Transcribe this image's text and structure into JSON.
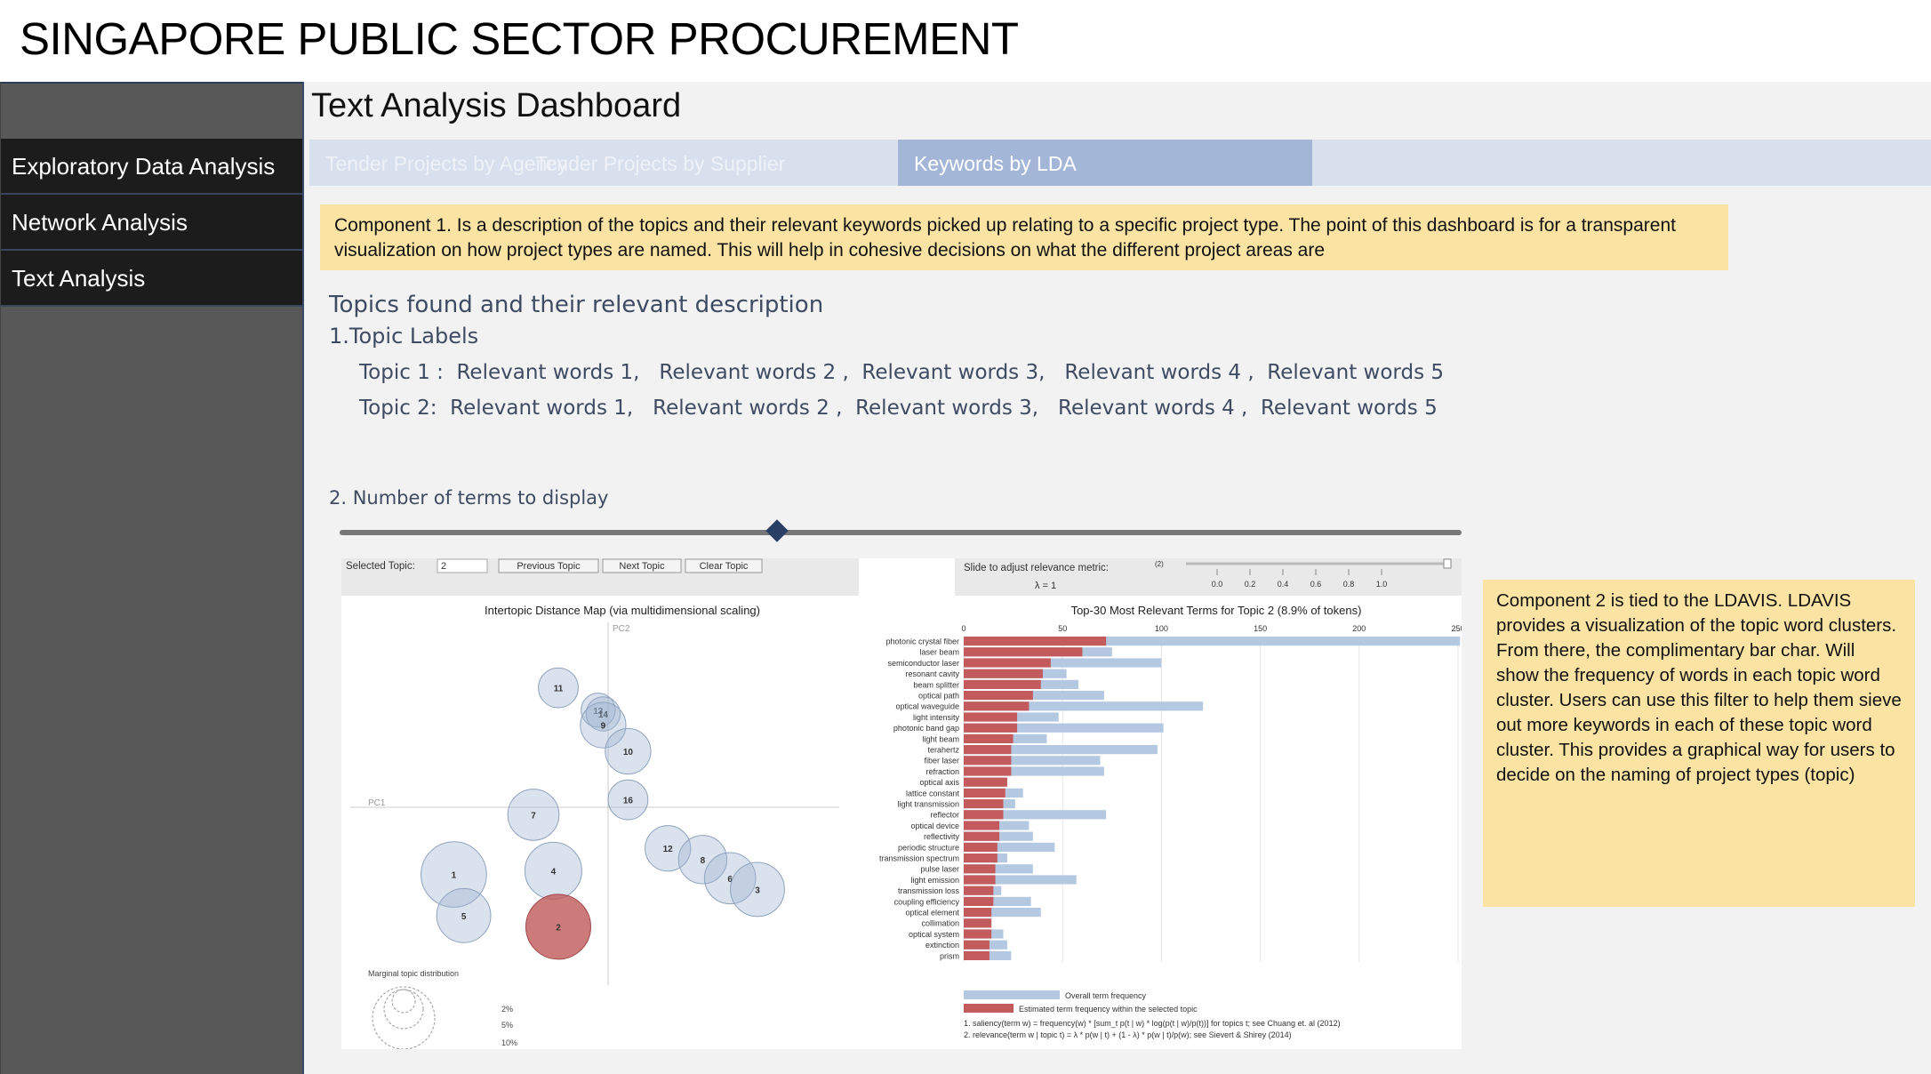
{
  "app": {
    "title": "SINGAPORE PUBLIC SECTOR PROCUREMENT"
  },
  "sidebar": {
    "items": [
      {
        "label": "Exploratory Data Analysis"
      },
      {
        "label": "Network Analysis"
      },
      {
        "label": "Text Analysis"
      }
    ]
  },
  "main": {
    "title": "Text Analysis Dashboard",
    "tabs": [
      {
        "label": "Tender Projects by Agency"
      },
      {
        "label": "Tender Projects by Supplier"
      },
      {
        "label": "Keywords by LDA"
      }
    ],
    "component1": "Component 1. Is a description of the topics and their relevant keywords picked up relating to a specific project type. The point of this dashboard is for a transparent visualization on how project types are named. This will help in cohesive decisions on what the different project areas are",
    "topics_heading": "Topics found and their relevant description",
    "topic_labels_heading": "1.Topic Labels",
    "topic_lines": [
      "Topic 1 :  Relevant words 1,   Relevant words 2 ,  Relevant words 3,   Relevant words 4 ,  Relevant words 5",
      "Topic 2:  Relevant words 1,   Relevant words 2 ,  Relevant words 3,   Relevant words 4 ,  Relevant words 5"
    ],
    "terms_label": "2. Number of terms to display",
    "terms_slider_value": 0.39,
    "component2": "Component 2 is tied to the LDAVIS. LDAVIS provides a visualization of the topic word clusters. From there, the complimentary bar char. Will show the frequency of words in each topic word cluster. Users can use this filter to help them sieve out more keywords in each of these topic word cluster.  This provides a graphical way for users to decide on the naming of project types (topic)"
  },
  "ldavis": {
    "controls": {
      "selected_topic_label": "Selected Topic:",
      "selected_topic_value": "2",
      "prev_label": "Previous Topic",
      "next_label": "Next Topic",
      "clear_label": "Clear Topic",
      "relevance_label": "Slide to adjust relevance metric:",
      "relevance_sup": "(2)",
      "lambda_label": "λ = 1",
      "lambda_ticks": [
        "0.0",
        "0.2",
        "0.4",
        "0.6",
        "0.8",
        "1.0"
      ]
    },
    "map_title": "Intertopic Distance Map (via multidimensional scaling)",
    "pc1": "PC1",
    "pc2": "PC2",
    "marginal_label": "Marginal topic distribution",
    "marginal_legend": [
      "2%",
      "5%",
      "10%"
    ],
    "bar_title": "Top-30 Most Relevant Terms for Topic 2 (8.9% of tokens)",
    "legend_overall": "Overall term frequency",
    "legend_estimated": "Estimated term frequency within the selected topic",
    "footnote1": "1. saliency(term w) = frequency(w) * [sum_t p(t | w) * log(p(t | w)/p(t))] for topics t; see Chuang et. al (2012)",
    "footnote2": "2. relevance(term w | topic t) = λ * p(w | t) + (1 - λ) * p(w | t)/p(w); see Sievert & Shirey (2014)"
  },
  "chart_data": [
    {
      "type": "scatter",
      "title": "Intertopic Distance Map (via multidimensional scaling)",
      "xlabel": "PC1",
      "ylabel": "PC2",
      "topics": [
        {
          "id": "11",
          "pc1": -0.1,
          "pc2": 0.16,
          "size": 4.5,
          "selected": false
        },
        {
          "id": "13",
          "pc1": -0.02,
          "pc2": 0.13,
          "size": 3.5,
          "selected": false
        },
        {
          "id": "14",
          "pc1": -0.01,
          "pc2": 0.125,
          "size": 3.5,
          "selected": false
        },
        {
          "id": "9",
          "pc1": -0.01,
          "pc2": 0.11,
          "size": 5.5,
          "selected": false
        },
        {
          "id": "10",
          "pc1": 0.04,
          "pc2": 0.075,
          "size": 5.5,
          "selected": false
        },
        {
          "id": "16",
          "pc1": 0.04,
          "pc2": 0.01,
          "size": 4.5,
          "selected": false
        },
        {
          "id": "7",
          "pc1": -0.15,
          "pc2": -0.01,
          "size": 6.5,
          "selected": false
        },
        {
          "id": "12",
          "pc1": 0.12,
          "pc2": -0.055,
          "size": 5.5,
          "selected": false
        },
        {
          "id": "8",
          "pc1": 0.19,
          "pc2": -0.07,
          "size": 6,
          "selected": false
        },
        {
          "id": "6",
          "pc1": 0.245,
          "pc2": -0.095,
          "size": 6.5,
          "selected": false
        },
        {
          "id": "3",
          "pc1": 0.3,
          "pc2": -0.11,
          "size": 7,
          "selected": false
        },
        {
          "id": "1",
          "pc1": -0.31,
          "pc2": -0.09,
          "size": 9,
          "selected": false
        },
        {
          "id": "4",
          "pc1": -0.11,
          "pc2": -0.085,
          "size": 7.5,
          "selected": false
        },
        {
          "id": "5",
          "pc1": -0.29,
          "pc2": -0.145,
          "size": 7,
          "selected": false
        },
        {
          "id": "2",
          "pc1": -0.1,
          "pc2": -0.16,
          "size": 8.9,
          "selected": true
        }
      ]
    },
    {
      "type": "bar",
      "title": "Top-30 Most Relevant Terms for Topic 2 (8.9% of tokens)",
      "xlim": [
        0,
        250
      ],
      "xticks": [
        0,
        50,
        100,
        150,
        200,
        250
      ],
      "categories": [
        "photonic crystal fiber",
        "laser beam",
        "semiconductor laser",
        "resonant cavity",
        "beam splitter",
        "optical path",
        "optical waveguide",
        "light intensity",
        "photonic band gap",
        "light beam",
        "terahertz",
        "fiber laser",
        "refraction",
        "optical axis",
        "lattice constant",
        "light transmission",
        "reflector",
        "optical device",
        "reflectivity",
        "periodic structure",
        "transmission spectrum",
        "pulse laser",
        "light emission",
        "transmission loss",
        "coupling efficiency",
        "optical element",
        "collimation",
        "optical system",
        "extinction",
        "prism"
      ],
      "series": [
        {
          "name": "Overall term frequency",
          "values": [
            251,
            75,
            100,
            52,
            58,
            71,
            121,
            48,
            101,
            42,
            98,
            69,
            71,
            22,
            30,
            26,
            72,
            33,
            35,
            46,
            22,
            35,
            57,
            19,
            34,
            39,
            14,
            20,
            22,
            24
          ]
        },
        {
          "name": "Estimated term frequency within the selected topic",
          "values": [
            72,
            60,
            44,
            40,
            39,
            35,
            33,
            27,
            27,
            25,
            24,
            24,
            24,
            22,
            21,
            20,
            20,
            18,
            18,
            17,
            17,
            16,
            16,
            15,
            15,
            14,
            14,
            14,
            13,
            13
          ]
        }
      ]
    }
  ]
}
